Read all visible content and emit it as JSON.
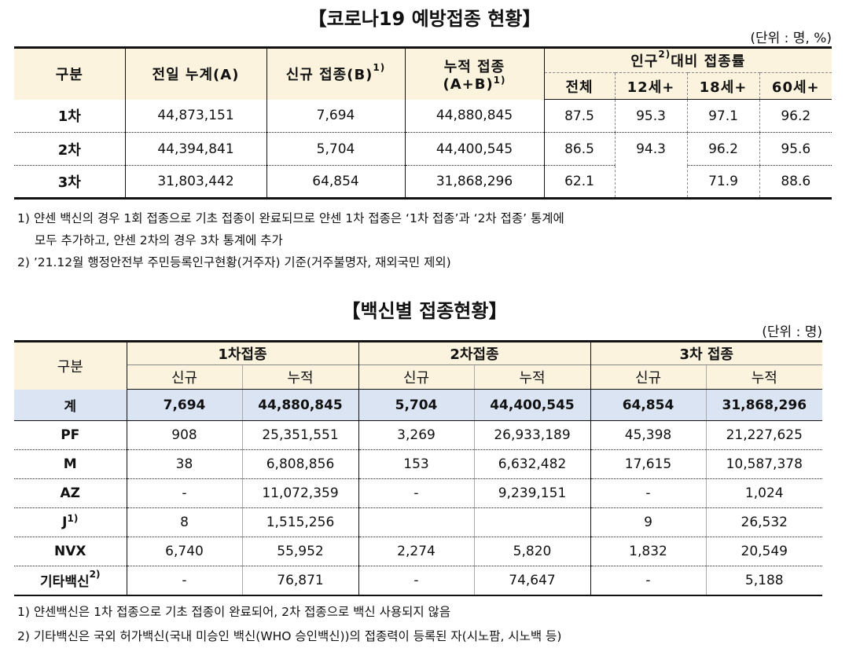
{
  "section1": {
    "title": "【코로나19 예방접종 현황】",
    "unit": "(단위 : 명, %)",
    "headers": {
      "category": "구분",
      "prev_cumulative": "전일 누계(A)",
      "new_label": "신규 접종(B)",
      "new_sup": "1)",
      "cumulative_line1": "누적 접종",
      "cumulative_line2": "(A+B)",
      "cumulative_sup": "1)",
      "population_label": "인구",
      "population_sup": "2)",
      "population_rest": "대비 접종률",
      "sub_total": "전체",
      "sub_12": "12세+",
      "sub_18": "18세+",
      "sub_60": "60세+"
    },
    "rows": [
      {
        "label": "1차",
        "prev": "44,873,151",
        "new": "7,694",
        "cum": "44,880,845",
        "total": "87.5",
        "age12": "95.3",
        "age18": "97.1",
        "age60": "96.2"
      },
      {
        "label": "2차",
        "prev": "44,394,841",
        "new": "5,704",
        "cum": "44,400,545",
        "total": "86.5",
        "age12": "94.3",
        "age18": "96.2",
        "age60": "95.6"
      },
      {
        "label": "3차",
        "prev": "31,803,442",
        "new": "64,854",
        "cum": "31,868,296",
        "total": "62.1",
        "age12": "",
        "age18": "71.9",
        "age60": "88.6"
      }
    ],
    "notes": [
      "1) 얀센 백신의 경우 1회 접종으로 기초 접종이 완료되므로 얀센 1차 접종은 ‘1차 접종’과 ‘2차 접종’ 통계에",
      "모두 추가하고, 얀센 2차의 경우 3차 통계에 추가",
      "2) ’21.12월 행정안전부 주민등록인구현황(거주자) 기준(거주불명자, 재외국민 제외)"
    ]
  },
  "section2": {
    "title": "【백신별 접종현황】",
    "unit": "(단위 : 명)",
    "headers": {
      "category": "구분",
      "dose1": "1차접종",
      "dose2": "2차접종",
      "dose3": "3차 접종",
      "new": "신규",
      "cumulative": "누적"
    },
    "total_row": {
      "label": "계",
      "d1_new": "7,694",
      "d1_cum": "44,880,845",
      "d2_new": "5,704",
      "d2_cum": "44,400,545",
      "d3_new": "64,854",
      "d3_cum": "31,868,296"
    },
    "rows": [
      {
        "label": "PF",
        "sup": "",
        "d1_new": "908",
        "d1_cum": "25,351,551",
        "d2_new": "3,269",
        "d2_cum": "26,933,189",
        "d3_new": "45,398",
        "d3_cum": "21,227,625"
      },
      {
        "label": "M",
        "sup": "",
        "d1_new": "38",
        "d1_cum": "6,808,856",
        "d2_new": "153",
        "d2_cum": "6,632,482",
        "d3_new": "17,615",
        "d3_cum": "10,587,378"
      },
      {
        "label": "AZ",
        "sup": "",
        "d1_new": "-",
        "d1_cum": "11,072,359",
        "d2_new": "-",
        "d2_cum": "9,239,151",
        "d3_new": "-",
        "d3_cum": "1,024"
      },
      {
        "label": "J",
        "sup": "1)",
        "d1_new": "8",
        "d1_cum": "1,515,256",
        "d2_new": "",
        "d2_cum": "",
        "d3_new": "9",
        "d3_cum": "26,532"
      },
      {
        "label": "NVX",
        "sup": "",
        "d1_new": "6,740",
        "d1_cum": "55,952",
        "d2_new": "2,274",
        "d2_cum": "5,820",
        "d3_new": "1,832",
        "d3_cum": "20,549"
      },
      {
        "label": "기타백신",
        "sup": "2)",
        "d1_new": "-",
        "d1_cum": "76,871",
        "d2_new": "-",
        "d2_cum": "74,647",
        "d3_new": "-",
        "d3_cum": "5,188"
      }
    ],
    "notes": [
      "1) 얀센백신은 1차 접종으로 기초 접종이 완료되어, 2차 접종으로 백신 사용되지 않음",
      "2) 기타백신은 국외 허가백신(국내 미승인 백신(WHO 승인백신))의 접종력이 등록된 자(시노팜, 시노백 등)"
    ]
  },
  "colors": {
    "header_bg": "#fbf3de",
    "total_row_bg": "#dbe4f3"
  }
}
